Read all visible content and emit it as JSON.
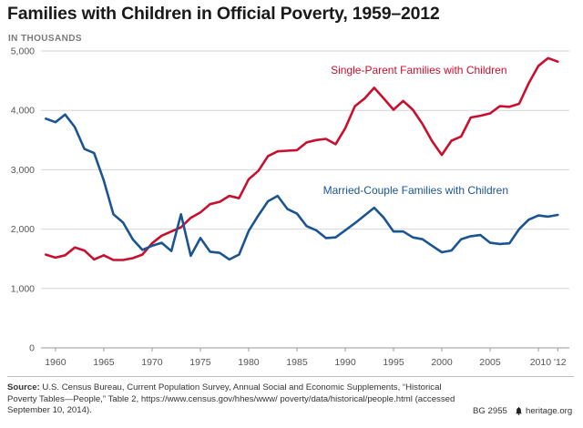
{
  "title": "Families with Children in Official Poverty, 1959–2012",
  "unit_label": "IN THOUSANDS",
  "chart_data": {
    "type": "line",
    "title": "Families with Children in Official Poverty, 1959–2012",
    "ylabel": "IN THOUSANDS",
    "xlabel": "",
    "xlim": [
      1958.5,
      2013.2
    ],
    "ylim": [
      0,
      5000
    ],
    "grid": true,
    "y_ticks": [
      0,
      1000,
      2000,
      3000,
      4000,
      5000
    ],
    "y_tick_labels": [
      "0",
      "1,000",
      "2,000",
      "3,000",
      "4,000",
      "5,000"
    ],
    "x_ticks": [
      1960,
      1965,
      1970,
      1975,
      1980,
      1985,
      1990,
      1995,
      2000,
      2005
    ],
    "x_tick_labels": [
      "1960",
      "1965",
      "1970",
      "1975",
      "1980",
      "1985",
      "1990",
      "1995",
      "2000",
      "2005"
    ],
    "x_tick_last": "2010 '12",
    "x": [
      1959,
      1960,
      1961,
      1962,
      1963,
      1964,
      1965,
      1966,
      1967,
      1968,
      1969,
      1970,
      1971,
      1972,
      1973,
      1974,
      1975,
      1976,
      1977,
      1978,
      1979,
      1980,
      1981,
      1982,
      1983,
      1984,
      1985,
      1986,
      1987,
      1988,
      1989,
      1990,
      1991,
      1992,
      1993,
      1994,
      1995,
      1996,
      1997,
      1998,
      1999,
      2000,
      2001,
      2002,
      2003,
      2004,
      2005,
      2006,
      2007,
      2008,
      2009,
      2010,
      2011,
      2012
    ],
    "series": [
      {
        "name": "Single-Parent Families with Children",
        "color": "#c8102e",
        "values": [
          1570,
          1520,
          1560,
          1690,
          1640,
          1490,
          1560,
          1480,
          1480,
          1510,
          1570,
          1760,
          1890,
          1960,
          2030,
          2190,
          2280,
          2420,
          2460,
          2560,
          2520,
          2840,
          2980,
          3230,
          3310,
          3320,
          3330,
          3460,
          3500,
          3520,
          3430,
          3700,
          4070,
          4200,
          4380,
          4200,
          4010,
          4160,
          4010,
          3770,
          3480,
          3250,
          3490,
          3560,
          3880,
          3910,
          3950,
          4070,
          4060,
          4110,
          4460,
          4750,
          4880,
          4820
        ]
      },
      {
        "name": "Married-Couple Families with Children",
        "color": "#1a5591",
        "values": [
          3860,
          3800,
          3930,
          3720,
          3350,
          3280,
          2820,
          2250,
          2110,
          1830,
          1650,
          1720,
          1770,
          1630,
          2250,
          1550,
          1850,
          1620,
          1600,
          1490,
          1570,
          1970,
          2230,
          2470,
          2560,
          2340,
          2260,
          2050,
          1980,
          1850,
          1860,
          1980,
          2100,
          2230,
          2360,
          2190,
          1960,
          1960,
          1860,
          1830,
          1720,
          1610,
          1640,
          1830,
          1880,
          1900,
          1770,
          1750,
          1760,
          2000,
          2160,
          2230,
          2210,
          2240
        ]
      }
    ],
    "annotations": [
      {
        "text": "Single-Parent Families with Children",
        "series": 0
      },
      {
        "text": "Married-Couple Families with Children",
        "series": 1
      }
    ]
  },
  "footer": {
    "source_label": "Source:",
    "source_text": "U.S. Census Bureau, Current Population Survey, Annual Social and Economic Supplements, “Historical Poverty Tables—People,” Table 2, https://www.census.gov/hhes/www/ poverty/data/historical/people.html (accessed September 10, 2014).",
    "report_number": "BG 2955",
    "site": "heritage.org"
  }
}
